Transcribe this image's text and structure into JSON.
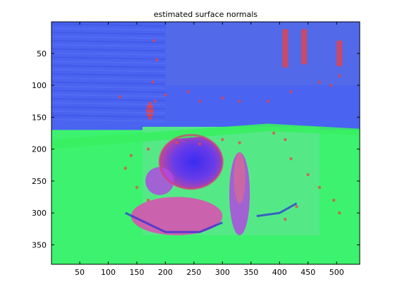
{
  "chart_data": {
    "type": "heatmap",
    "title": "estimated surface normals",
    "xlabel": "",
    "ylabel": "",
    "xlim": [
      0.5,
      540.5
    ],
    "ylim": [
      0.5,
      380.5
    ],
    "y_reversed": true,
    "xticks": [
      50,
      100,
      150,
      200,
      250,
      300,
      350,
      400,
      450,
      500
    ],
    "yticks": [
      50,
      100,
      150,
      200,
      250,
      300,
      350
    ],
    "colors": {
      "background": "#ffffff",
      "axes_frame": "#000000",
      "ground_green": "#3cf26e",
      "lawn_green": "#55e887",
      "wall_blue": "#4a63f0",
      "normal_red": "#f0403c",
      "normal_purple": "#b04ae0",
      "normal_magenta": "#e04ab4",
      "bright_green": "#38f060"
    },
    "regions": [
      {
        "name": "background wall",
        "color_key": "wall_blue",
        "x": [
          0,
          540
        ],
        "y": [
          0,
          170
        ]
      },
      {
        "name": "ground plane",
        "color_key": "ground_green",
        "x": [
          0,
          540
        ],
        "y": [
          170,
          380
        ]
      },
      {
        "name": "table top",
        "color_key": "lawn_green",
        "x": [
          160,
          470
        ],
        "y": [
          165,
          335
        ]
      },
      {
        "name": "round object",
        "color_key": "wall_blue",
        "cx": 245,
        "cy": 220,
        "rx": 55,
        "ry": 42
      },
      {
        "name": "left bowl",
        "color_key": "normal_purple",
        "cx": 190,
        "cy": 250,
        "rx": 25,
        "ry": 22
      },
      {
        "name": "tall bottle",
        "color_key": "normal_purple",
        "cx": 330,
        "cy": 270,
        "rx": 18,
        "ry": 65
      },
      {
        "name": "low tray",
        "color_key": "normal_magenta",
        "cx": 220,
        "cy": 305,
        "rx": 80,
        "ry": 30
      },
      {
        "name": "red post",
        "color_key": "normal_red",
        "cx": 173,
        "cy": 140,
        "rx": 6,
        "ry": 14
      }
    ]
  }
}
